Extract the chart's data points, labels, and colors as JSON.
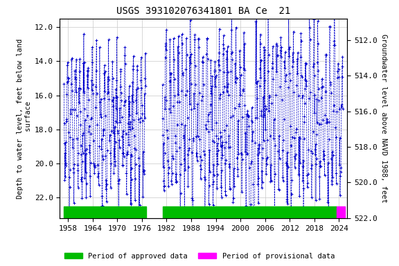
{
  "title": "USGS 393102076341801 BA Ce  21",
  "ylabel_left": "Depth to water level, feet below land\n surface",
  "ylabel_right": "Groundwater level above NAVD 1988, feet",
  "ylim_left": [
    11.5,
    23.2
  ],
  "ylim_right": [
    521.5,
    510.8
  ],
  "xlim": [
    1956.0,
    2026.0
  ],
  "xticks": [
    1958,
    1964,
    1970,
    1976,
    1982,
    1988,
    1994,
    2000,
    2006,
    2012,
    2018,
    2024
  ],
  "yticks_left": [
    12.0,
    14.0,
    16.0,
    18.0,
    20.0,
    22.0
  ],
  "yticks_right": [
    522.0,
    520.0,
    518.0,
    516.0,
    514.0,
    512.0
  ],
  "line_color": "#0000cc",
  "marker": "+",
  "linestyle": "--",
  "approved_color": "#00bb00",
  "provisional_color": "#ff00ff",
  "approved_start": 1957.0,
  "approved_end": 1977.0,
  "approved_start2": 1981.0,
  "approved_end2": 2023.5,
  "provisional_start": 2023.5,
  "provisional_end": 2025.5,
  "legend_approved": "Period of approved data",
  "legend_provisional": "Period of provisional data",
  "background_color": "#ffffff",
  "grid_color": "#c8c8c8",
  "title_fontsize": 10,
  "label_fontsize": 7.5,
  "tick_fontsize": 8,
  "bar_ymin": 22.5,
  "bar_ymax": 23.2
}
